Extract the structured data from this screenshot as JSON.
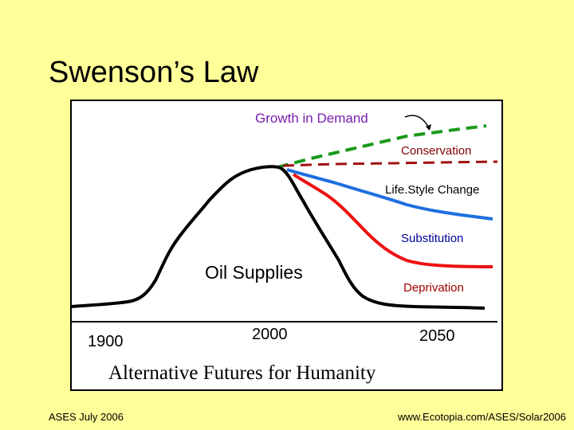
{
  "slide": {
    "title": "Swenson’s Law",
    "footer_left": "ASES July 2006",
    "footer_right": "www.Ecotopia.com/ASES/Solar2006"
  },
  "figure": {
    "caption": "Alternative Futures for Humanity",
    "main_label": "Oil Supplies",
    "years": [
      "1900",
      "2000",
      "2050"
    ],
    "scenarios": [
      {
        "key": "growth",
        "label": "Growth in Demand",
        "color": "#1a9a1a"
      },
      {
        "key": "conservation",
        "label": "Conservation",
        "color": "#a01010"
      },
      {
        "key": "lifestyle",
        "label": "Life.Style Change",
        "color": "#1e6fe0"
      },
      {
        "key": "substitution",
        "label": "Substitution",
        "color": "#ee1111"
      },
      {
        "key": "deprivation",
        "label": "Deprivation",
        "color": "#000000"
      }
    ],
    "label_colors": {
      "growth": "#7a1fb0",
      "conservation": "#800000",
      "lifestyle": "#000000",
      "substitution": "#00009a",
      "deprivation": "#a00000"
    }
  }
}
